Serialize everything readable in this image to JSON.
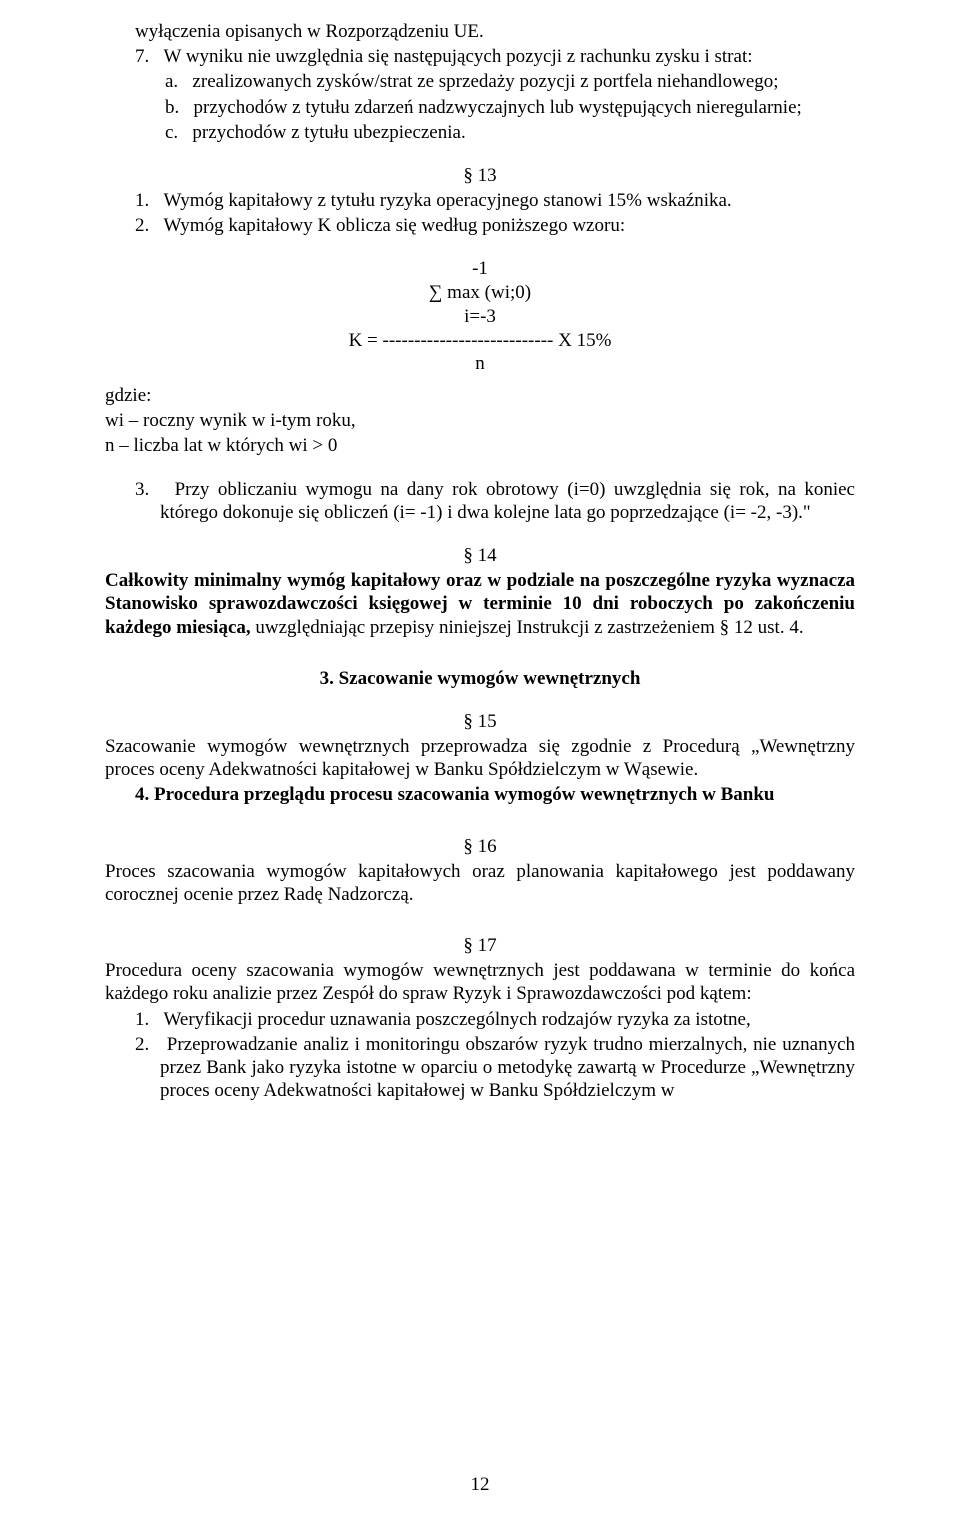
{
  "line1": "wyłączenia opisanych w Rozporządzeniu UE.",
  "line2": "7.   W wyniku nie uwzględnia się następujących pozycji z rachunku zysku i strat:",
  "line3a": "a.   zrealizowanych zysków/strat ze sprzedaży pozycji z portfela niehandlowego;",
  "line3b": "b.   przychodów z tytułu zdarzeń nadzwyczajnych lub występujących nieregularnie;",
  "line3c": "c.   przychodów z tytułu ubezpieczenia.",
  "s13": "§ 13",
  "s13_1": "1.   Wymóg kapitałowy z tytułu ryzyka operacyjnego stanowi 15% wskaźnika.",
  "s13_2": "2.   Wymóg kapitałowy K oblicza się według poniższego wzoru:",
  "formula_l1": "-1",
  "formula_l2": "∑ max (wi;0)",
  "formula_l3": "i=-3",
  "formula_l4": "K = --------------------------- X 15%",
  "formula_l5": "n",
  "gdzie": "gdzie:",
  "gdzie1": "wi – roczny wynik w i-tym roku,",
  "gdzie2": "n – liczba lat w których wi > 0",
  "s13_3": "3.   Przy obliczaniu wymogu na dany rok obrotowy (i=0) uwzględnia się rok, na koniec którego dokonuje się obliczeń (i= -1) i dwa kolejne lata go poprzedzające (i= -2, -3).\"",
  "s14": "§ 14",
  "s14_body_prefix": "Całkowity minimalny wymóg kapitałowy oraz w podziale na poszczególne ryzyka wyznacza Stanowisko sprawozdawczości księgowej w terminie 10 dni roboczych po zakończeniu każdego miesiąca, ",
  "s14_body_suffix": "uwzględniając przepisy niniejszej Instrukcji z zastrzeżeniem § 12 ust. 4.",
  "h3": "3. Szacowanie wymogów wewnętrznych",
  "s15": "§ 15",
  "s15_body": "Szacowanie wymogów wewnętrznych przeprowadza się zgodnie z Procedurą „Wewnętrzny proces oceny Adekwatności kapitałowej w Banku Spółdzielczym w Wąsewie.",
  "h4": "4. Procedura przeglądu procesu szacowania wymogów wewnętrznych w Banku",
  "s16": "§ 16",
  "s16_body": "Proces szacowania wymogów kapitałowych oraz planowania kapitałowego jest poddawany corocznej ocenie przez Radę Nadzorczą.",
  "s17": "§ 17",
  "s17_body": "Procedura oceny szacowania wymogów wewnętrznych jest poddawana w terminie do końca każdego roku analizie przez Zespół do spraw Ryzyk i Sprawozdawczości pod kątem:",
  "s17_1": "1.   Weryfikacji procedur uznawania poszczególnych rodzajów ryzyka za istotne,",
  "s17_2": "2.   Przeprowadzanie analiz i monitoringu obszarów ryzyk trudno mierzalnych, nie uznanych przez Bank jako ryzyka istotne w oparciu o metodykę zawartą w Procedurze „Wewnętrzny proces oceny Adekwatności kapitałowej w Banku Spółdzielczym w",
  "pagenum": "12"
}
